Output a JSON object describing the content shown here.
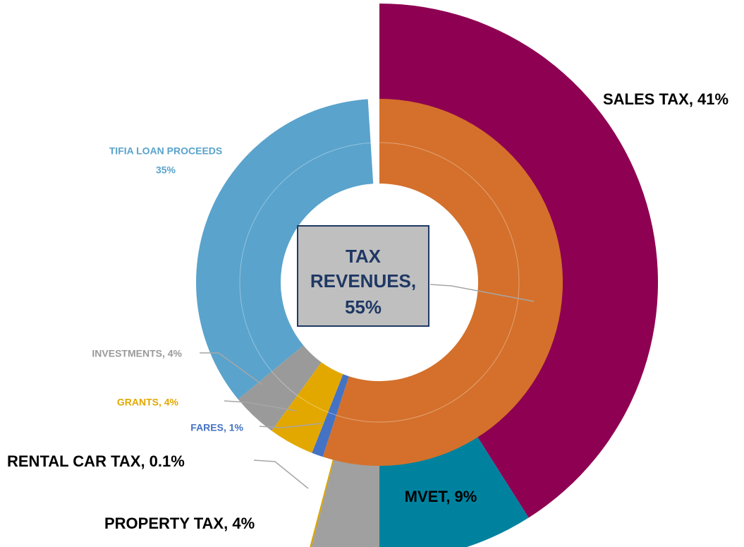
{
  "chart_data": {
    "type": "sunburst",
    "inner": {
      "values": [
        55,
        1,
        4,
        4,
        35
      ],
      "value_labels": [
        [
          "TAX",
          "REVENUES,",
          "55%"
        ],
        [
          "FARES, 1%"
        ],
        [
          "GRANTS, 4%"
        ],
        [
          "INVESTMENTS, 4%"
        ],
        [
          "TIFIA LOAN PROCEEDS",
          "35%"
        ]
      ],
      "colors": [
        "#d4702b",
        "#4472c4",
        "#e3a800",
        "#9a9a9a",
        "#5aa3cc"
      ]
    },
    "outer": {
      "values": [
        41,
        9,
        4,
        0.1
      ],
      "value_labels": [
        [
          "SALES TAX, 41%"
        ],
        [
          "MVET, 9%"
        ],
        [
          "PROPERTY TAX, 4%"
        ],
        [
          "RENTAL CAR TAX, 0.1%"
        ]
      ],
      "colors": [
        "#8e0052",
        "#00829f",
        "#a0a0a0",
        "#d9a300"
      ]
    }
  }
}
